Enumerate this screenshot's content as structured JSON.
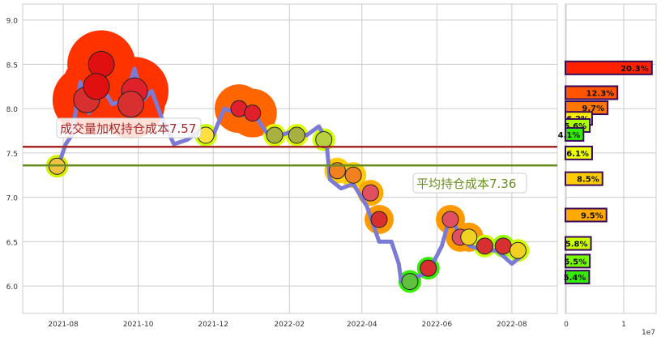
{
  "chart_data": [
    {
      "type": "line",
      "ylim": [
        5.69,
        9.18
      ],
      "xlim": [
        "2021-06-29",
        "2022-09-07"
      ],
      "grid": true,
      "x_ticks": [
        "2021-08",
        "2021-10",
        "2021-12",
        "2022-02",
        "2022-04",
        "2022-06",
        "2022-08"
      ],
      "y_ticks": [
        "6.0",
        "6.5",
        "7.0",
        "7.5",
        "8.0",
        "8.5",
        "9.0"
      ],
      "series": [
        {
          "color": "#7b7bd6",
          "points": [
            [
              "2021-07-27",
              7.32
            ],
            [
              "2021-08-03",
              7.6
            ],
            [
              "2021-08-08",
              7.7
            ],
            [
              "2021-08-15",
              8.3
            ],
            [
              "2021-08-22",
              7.95
            ],
            [
              "2021-08-30",
              8.3
            ],
            [
              "2021-09-10",
              8.05
            ],
            [
              "2021-09-20",
              8.1
            ],
            [
              "2021-09-28",
              8.45
            ],
            [
              "2021-10-05",
              8.1
            ],
            [
              "2021-10-12",
              8.2
            ],
            [
              "2021-10-20",
              7.9
            ],
            [
              "2021-10-30",
              7.6
            ],
            [
              "2021-11-10",
              7.65
            ],
            [
              "2021-11-20",
              7.75
            ],
            [
              "2021-12-01",
              7.7
            ],
            [
              "2021-12-10",
              8.0
            ],
            [
              "2021-12-20",
              7.95
            ],
            [
              "2022-01-05",
              7.9
            ],
            [
              "2022-01-15",
              7.7
            ],
            [
              "2022-01-25",
              7.7
            ],
            [
              "2022-02-05",
              7.75
            ],
            [
              "2022-02-15",
              7.7
            ],
            [
              "2022-02-25",
              7.8
            ],
            [
              "2022-03-03",
              7.65
            ],
            [
              "2022-03-06",
              7.2
            ],
            [
              "2022-03-15",
              7.1
            ],
            [
              "2022-03-25",
              7.15
            ],
            [
              "2022-04-05",
              6.9
            ],
            [
              "2022-04-15",
              6.5
            ],
            [
              "2022-04-25",
              6.5
            ],
            [
              "2022-05-01",
              6.25
            ],
            [
              "2022-05-03",
              6.05
            ],
            [
              "2022-05-15",
              6.1
            ],
            [
              "2022-05-25",
              6.15
            ],
            [
              "2022-06-05",
              6.45
            ],
            [
              "2022-06-12",
              6.8
            ],
            [
              "2022-06-20",
              6.55
            ],
            [
              "2022-06-28",
              6.45
            ],
            [
              "2022-07-10",
              6.4
            ],
            [
              "2022-07-20",
              6.4
            ],
            [
              "2022-08-01",
              6.25
            ],
            [
              "2022-08-10",
              6.35
            ]
          ]
        }
      ],
      "markers": [
        {
          "date": "2021-07-27",
          "price": 7.35,
          "fruit": "pineapple",
          "color": "#d4f000"
        },
        {
          "date": "2021-08-20",
          "price": 8.1,
          "fruit": "watermelon",
          "color": "#ff3300"
        },
        {
          "date": "2021-09-01",
          "price": 8.5,
          "fruit": "apple",
          "color": "#ff3300"
        },
        {
          "date": "2021-08-28",
          "price": 8.25,
          "fruit": "apple",
          "color": "#ff3300"
        },
        {
          "date": "2021-09-28",
          "price": 8.2,
          "fruit": "strawberry",
          "color": "#ff3300"
        },
        {
          "date": "2021-09-25",
          "price": 8.05,
          "fruit": "watermelon",
          "color": "#ff3300"
        },
        {
          "date": "2021-11-25",
          "price": 7.7,
          "fruit": "banana",
          "color": "#ccff00"
        },
        {
          "date": "2021-12-22",
          "price": 8.0,
          "fruit": "strawberry",
          "color": "#ff6600"
        },
        {
          "date": "2022-01-02",
          "price": 7.95,
          "fruit": "strawberry",
          "color": "#ff6600"
        },
        {
          "date": "2022-01-20",
          "price": 7.7,
          "fruit": "pear",
          "color": "#ddff00"
        },
        {
          "date": "2022-02-07",
          "price": 7.7,
          "fruit": "pear",
          "color": "#ddff00"
        },
        {
          "date": "2022-03-01",
          "price": 7.65,
          "fruit": "kiwi",
          "color": "#ccff00"
        },
        {
          "date": "2022-03-12",
          "price": 7.3,
          "fruit": "carrot",
          "color": "#ffcc00"
        },
        {
          "date": "2022-03-25",
          "price": 7.25,
          "fruit": "carrot",
          "color": "#ffcc00"
        },
        {
          "date": "2022-04-08",
          "price": 7.05,
          "fruit": "radish",
          "color": "#ffaa00"
        },
        {
          "date": "2022-04-15",
          "price": 6.75,
          "fruit": "watermelon",
          "color": "#ff9900"
        },
        {
          "date": "2022-05-10",
          "price": 6.05,
          "fruit": "pineapple-slices",
          "color": "#33ee00"
        },
        {
          "date": "2022-05-25",
          "price": 6.2,
          "fruit": "watermelon",
          "color": "#33ee00"
        },
        {
          "date": "2022-06-12",
          "price": 6.75,
          "fruit": "radish",
          "color": "#ff9900"
        },
        {
          "date": "2022-06-20",
          "price": 6.55,
          "fruit": "radish",
          "color": "#ff9900"
        },
        {
          "date": "2022-06-27",
          "price": 6.55,
          "fruit": "corn",
          "color": "#ff9900"
        },
        {
          "date": "2022-07-10",
          "price": 6.45,
          "fruit": "watermelon",
          "color": "#ccff00"
        },
        {
          "date": "2022-07-25",
          "price": 6.45,
          "fruit": "watermelon",
          "color": "#99ff00"
        },
        {
          "date": "2022-08-06",
          "price": 6.4,
          "fruit": "corn",
          "color": "#ccff00"
        }
      ],
      "hlines": [
        {
          "value": 7.57,
          "color": "#a52a2a",
          "label": "成交量加权持仓成本7.57"
        },
        {
          "value": 7.36,
          "color": "#6b8e23",
          "label": "平均持仓成本7.36"
        }
      ]
    },
    {
      "type": "bar",
      "orientation": "horizontal",
      "xlim": [
        0,
        1.55
      ],
      "x_ticks": [
        "0",
        "1"
      ],
      "x_offset_label": "1e7",
      "bars": [
        {
          "price": 8.46,
          "value": 1.49,
          "label": "20.3%",
          "color": "#ff2200"
        },
        {
          "price": 8.18,
          "value": 0.89,
          "label": "12.3%",
          "color": "#ff5500"
        },
        {
          "price": 8.01,
          "value": 0.72,
          "label": "9.7%",
          "color": "#ff7700"
        },
        {
          "price": 7.89,
          "value": 0.45,
          "label": "6.2%",
          "color": "#ffee00"
        },
        {
          "price": 7.81,
          "value": 0.41,
          "label": "5.6%",
          "color": "#aaff00"
        },
        {
          "price": 7.71,
          "value": 0.3,
          "label": "4.1%",
          "color": "#33ee00"
        },
        {
          "price": 7.5,
          "value": 0.45,
          "label": "6.1%",
          "color": "#eeff00"
        },
        {
          "price": 7.21,
          "value": 0.63,
          "label": "8.5%",
          "color": "#ffcc00"
        },
        {
          "price": 6.8,
          "value": 0.7,
          "label": "9.5%",
          "color": "#ffaa00"
        },
        {
          "price": 6.48,
          "value": 0.43,
          "label": "5.8%",
          "color": "#ccff00"
        },
        {
          "price": 6.28,
          "value": 0.41,
          "label": "5.5%",
          "color": "#77ff00"
        },
        {
          "price": 6.1,
          "value": 0.4,
          "label": "5.4%",
          "color": "#33ee00"
        }
      ]
    }
  ]
}
